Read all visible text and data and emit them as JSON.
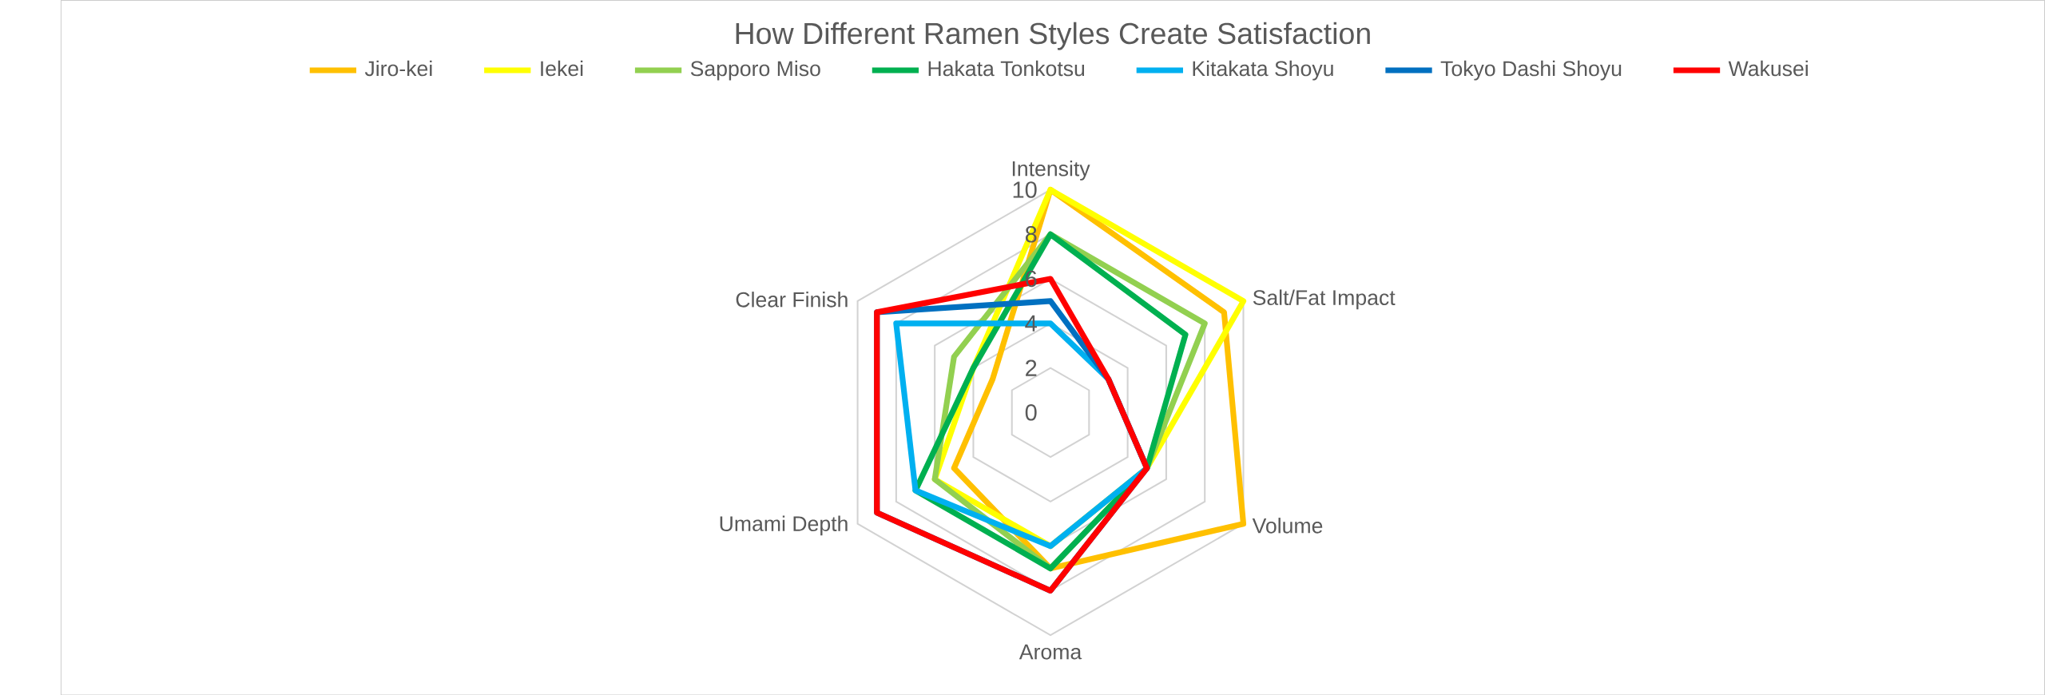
{
  "chart_data": {
    "type": "radar",
    "title": "How Different Ramen Styles Create Satisfaction",
    "categories": [
      "Intensity",
      "Salt/Fat Impact",
      "Volume",
      "Aroma",
      "Umami Depth",
      "Clear Finish"
    ],
    "ylim": [
      0,
      10
    ],
    "yticks": [
      0,
      2,
      4,
      6,
      8,
      10
    ],
    "grid": true,
    "legend": "top",
    "series": [
      {
        "name": "Jiro-kei",
        "color": "#ffc000",
        "values": [
          10,
          9,
          10,
          7,
          5,
          3
        ]
      },
      {
        "name": "Iekei",
        "color": "#ffff00",
        "values": [
          10,
          10,
          5,
          6,
          6,
          4
        ]
      },
      {
        "name": "Sapporo Miso",
        "color": "#92d050",
        "values": [
          8,
          8,
          5,
          7,
          6,
          5
        ]
      },
      {
        "name": "Hakata Tonkotsu",
        "color": "#00b050",
        "values": [
          8,
          7,
          5,
          7,
          7,
          4
        ]
      },
      {
        "name": "Kitakata Shoyu",
        "color": "#00b0f0",
        "values": [
          4,
          3,
          5,
          6,
          7,
          8
        ]
      },
      {
        "name": "Tokyo Dashi Shoyu",
        "color": "#0070c0",
        "values": [
          5,
          3,
          5,
          8,
          9,
          9
        ]
      },
      {
        "name": "Wakusei",
        "color": "#ff0000",
        "values": [
          6,
          3,
          5,
          8,
          9,
          9
        ]
      }
    ]
  }
}
